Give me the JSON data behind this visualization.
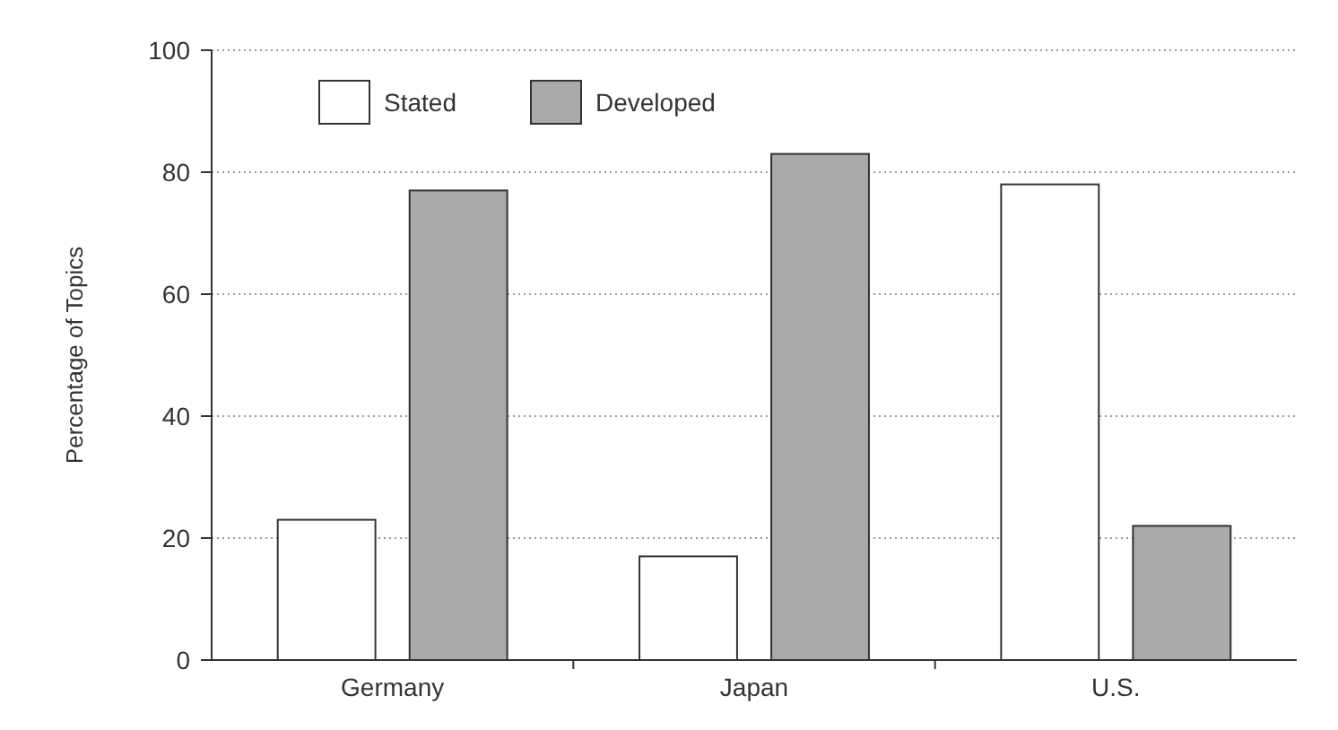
{
  "chart_data": {
    "type": "bar",
    "ylabel": "Percentage of Topics",
    "categories": [
      "Germany",
      "Japan",
      "U.S."
    ],
    "series": [
      {
        "name": "Stated",
        "color": "#ffffff",
        "values": [
          23,
          17,
          78
        ]
      },
      {
        "name": "Developed",
        "color": "#a9a9a9",
        "values": [
          77,
          83,
          22
        ]
      }
    ],
    "ylim": [
      0,
      100
    ],
    "yticks": [
      0,
      20,
      40,
      60,
      80,
      100
    ],
    "grid": "y",
    "legend": "top left"
  }
}
